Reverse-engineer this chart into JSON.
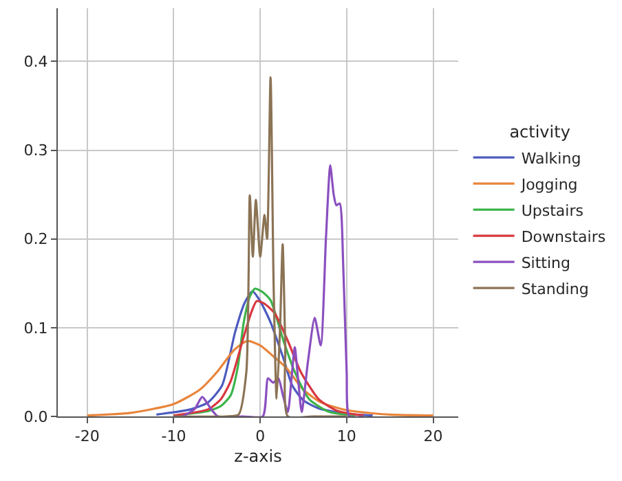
{
  "chart_data": {
    "type": "line",
    "xlabel": "z-axis",
    "legend_title": "activity",
    "legend": "right",
    "grid": true,
    "marker": "none",
    "line_style": "solid",
    "xlim": [
      -23.4,
      22.9
    ],
    "xticks": [
      -20,
      -10,
      0,
      10,
      20
    ],
    "ylim": [
      0,
      0.46
    ],
    "yticks": [
      {
        "value": 0,
        "label": "0.0"
      },
      {
        "value": 0.1,
        "label": "0.1"
      },
      {
        "value": 0.2,
        "label": "0.2"
      },
      {
        "value": 0.3,
        "label": "0.3"
      },
      {
        "value": 0.4,
        "label": "0.4"
      }
    ],
    "series": [
      {
        "name": "Walking",
        "color": "#4c5bbf",
        "x": [
          -12,
          -8,
          -6,
          -4.4,
          -2.9,
          -1.8,
          -0.9,
          0,
          1.2,
          2.7,
          3.7,
          5,
          6.8,
          10,
          13
        ],
        "values": [
          0.002,
          0.008,
          0.016,
          0.035,
          0.095,
          0.128,
          0.141,
          0.13,
          0.106,
          0.065,
          0.035,
          0.018,
          0.009,
          0.003,
          0.001
        ]
      },
      {
        "name": "Jogging",
        "color": "#e8853b",
        "x": [
          -20,
          -15,
          -10,
          -7,
          -5,
          -3,
          -1.5,
          0,
          1.5,
          3,
          5,
          7,
          10,
          15,
          20
        ],
        "values": [
          0.001,
          0.004,
          0.014,
          0.03,
          0.05,
          0.075,
          0.085,
          0.08,
          0.068,
          0.055,
          0.03,
          0.016,
          0.007,
          0.002,
          0.001
        ]
      },
      {
        "name": "Upstairs",
        "color": "#3cb44b",
        "x": [
          -10,
          -6,
          -4.5,
          -3.4,
          -2.6,
          -1.9,
          -1.2,
          -0.6,
          0.3,
          1.2,
          2.7,
          4,
          5.7,
          8,
          11
        ],
        "values": [
          0.001,
          0.006,
          0.012,
          0.024,
          0.055,
          0.106,
          0.135,
          0.144,
          0.14,
          0.131,
          0.085,
          0.05,
          0.019,
          0.005,
          0.001
        ]
      },
      {
        "name": "Downstairs",
        "color": "#d9363e",
        "x": [
          -10,
          -6,
          -4.5,
          -3.4,
          -1.9,
          -1,
          -0.4,
          0.5,
          1.7,
          3.2,
          4.7,
          6.8,
          9,
          12
        ],
        "values": [
          0.001,
          0.008,
          0.02,
          0.04,
          0.09,
          0.118,
          0.13,
          0.127,
          0.116,
          0.085,
          0.05,
          0.019,
          0.006,
          0.001
        ]
      },
      {
        "name": "Sitting",
        "color": "#8a4fbf",
        "x": [
          -9,
          -7.6,
          -6.7,
          -5.8,
          -4.9,
          -2,
          0.3,
          0.9,
          1.5,
          2.1,
          2.6,
          3.2,
          3.6,
          4,
          4.4,
          4.8,
          5.5,
          6.3,
          7,
          7.6,
          8.1,
          8.5,
          8.8,
          9.2,
          9.6,
          10,
          10.3,
          12
        ],
        "values": [
          0,
          0.008,
          0.022,
          0.01,
          0,
          0,
          0,
          0.043,
          0.038,
          0.043,
          0.025,
          0.005,
          0.04,
          0.078,
          0.04,
          0.005,
          0.06,
          0.111,
          0.08,
          0.2,
          0.283,
          0.25,
          0.238,
          0.24,
          0.17,
          0.05,
          0,
          0
        ]
      },
      {
        "name": "Standing",
        "color": "#8b7355",
        "x": [
          -10,
          -4,
          -2.5,
          -1.6,
          -1.2,
          -0.85,
          -0.5,
          0,
          0.5,
          0.8,
          1.2,
          1.55,
          1.9,
          2.3,
          2.6,
          2.9,
          3.2,
          6,
          10
        ],
        "values": [
          0,
          0,
          0.002,
          0.05,
          0.249,
          0.18,
          0.244,
          0.18,
          0.227,
          0.2,
          0.382,
          0.15,
          0.02,
          0.1,
          0.194,
          0.08,
          0,
          0,
          0
        ]
      }
    ]
  }
}
